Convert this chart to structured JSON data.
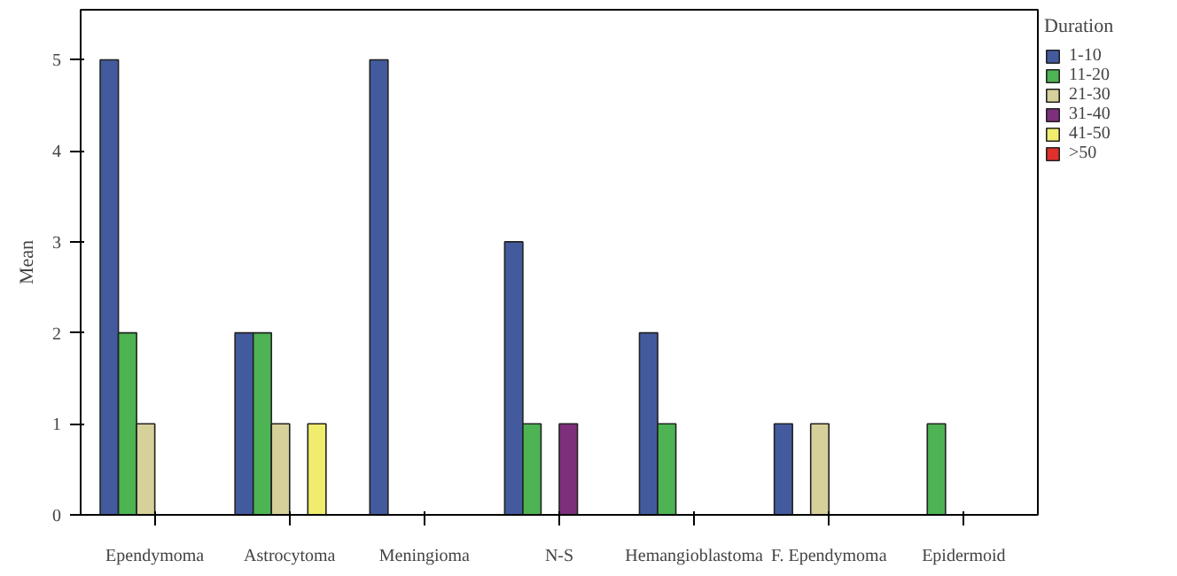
{
  "chart_data": {
    "type": "bar",
    "ylabel": "Mean",
    "legend_title": "Duration",
    "legend": "right",
    "categories": [
      "Ependymoma",
      "Astrocytoma",
      "Meningioma",
      "N-S",
      "Hemangioblastoma",
      "F. Ependymoma",
      "Epidermoid"
    ],
    "series": [
      {
        "name": "1-10",
        "color": "#435b9e",
        "values": [
          5,
          2,
          5,
          3,
          2,
          1,
          null
        ]
      },
      {
        "name": "11-20",
        "color": "#4db353",
        "values": [
          2,
          2,
          null,
          1,
          1,
          null,
          1
        ]
      },
      {
        "name": "21-30",
        "color": "#d6d09a",
        "values": [
          1,
          1,
          null,
          null,
          null,
          1,
          null
        ]
      },
      {
        "name": "31-40",
        "color": "#7e2f7c",
        "values": [
          null,
          null,
          null,
          1,
          null,
          null,
          null
        ]
      },
      {
        "name": "41-50",
        "color": "#f0ec6e",
        "values": [
          null,
          1,
          null,
          null,
          null,
          null,
          null
        ]
      },
      {
        "name": ">50",
        "color": "#e0302c",
        "values": [
          null,
          null,
          null,
          null,
          null,
          null,
          null
        ]
      }
    ],
    "ylim": [
      0,
      5.55
    ],
    "yticks": [
      0,
      1,
      2,
      3,
      4,
      5
    ],
    "grid": false
  }
}
